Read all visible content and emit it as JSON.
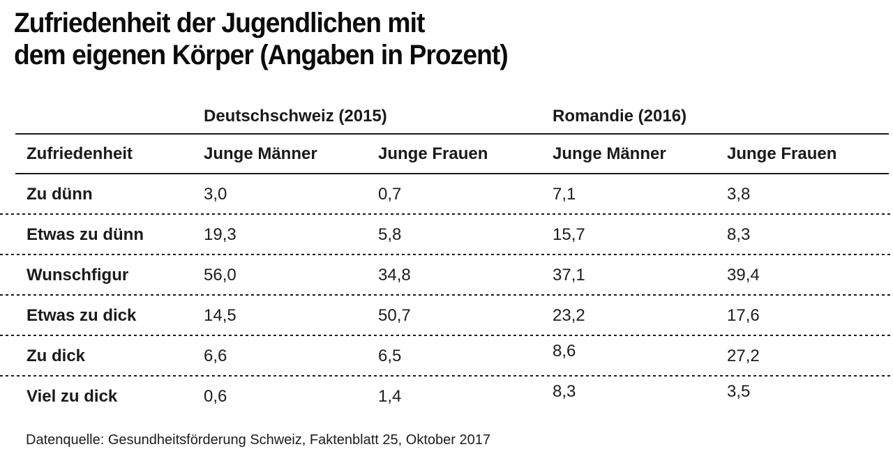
{
  "title": {
    "line1": "Zufriedenheit der Jugendlichen mit",
    "line2": "dem eigenen Körper (Angaben in Prozent)"
  },
  "table": {
    "group_headers": [
      "Deutschschweiz (2015)",
      "Romandie (2016)"
    ],
    "column_headers": [
      "Zufriedenheit",
      "Junge Männer",
      "Junge Frauen",
      "Junge Männer",
      "Junge Frauen"
    ],
    "rows": [
      {
        "label": "Zu dünn",
        "values": [
          "3,0",
          "0,7",
          "7,1",
          "3,8"
        ]
      },
      {
        "label": "Etwas zu dünn",
        "values": [
          "19,3",
          "5,8",
          "15,7",
          "8,3"
        ]
      },
      {
        "label": "Wunschfigur",
        "values": [
          "56,0",
          "34,8",
          "37,1",
          "39,4"
        ]
      },
      {
        "label": "Etwas zu dick",
        "values": [
          "14,5",
          "50,7",
          "23,2",
          "17,6"
        ]
      },
      {
        "label": "Zu dick",
        "values": [
          "6,6",
          "6,5",
          "8,6",
          "27,2"
        ]
      },
      {
        "label": "Viel zu dick",
        "values": [
          "0,6",
          "1,4",
          "8,3",
          "3,5"
        ]
      }
    ]
  },
  "source": "Datenquelle: Gesundheitsförderung Schweiz, Faktenblatt 25, Oktober 2017",
  "colors": {
    "title_text": "#0b0b0b",
    "body_text": "#1a1a1a",
    "rule": "#1a1a1a",
    "background": "#ffffff"
  },
  "chart_data": {
    "type": "table",
    "title": "Zufriedenheit der Jugendlichen mit dem eigenen Körper (Angaben in Prozent)",
    "categories": [
      "Zu dünn",
      "Etwas zu dünn",
      "Wunschfigur",
      "Etwas zu dick",
      "Zu dick",
      "Viel zu dick"
    ],
    "series": [
      {
        "name": "Deutschschweiz (2015) – Junge Männer",
        "values": [
          3.0,
          19.3,
          56.0,
          14.5,
          6.6,
          0.6
        ]
      },
      {
        "name": "Deutschschweiz (2015) – Junge Frauen",
        "values": [
          0.7,
          5.8,
          34.8,
          50.7,
          6.5,
          1.4
        ]
      },
      {
        "name": "Romandie (2016) – Junge Männer",
        "values": [
          7.1,
          15.7,
          37.1,
          23.2,
          8.6,
          8.3
        ]
      },
      {
        "name": "Romandie (2016) – Junge Frauen",
        "values": [
          3.8,
          8.3,
          39.4,
          17.6,
          27.2,
          3.5
        ]
      }
    ],
    "unit": "percent",
    "source": "Datenquelle: Gesundheitsförderung Schweiz, Faktenblatt 25, Oktober 2017"
  }
}
